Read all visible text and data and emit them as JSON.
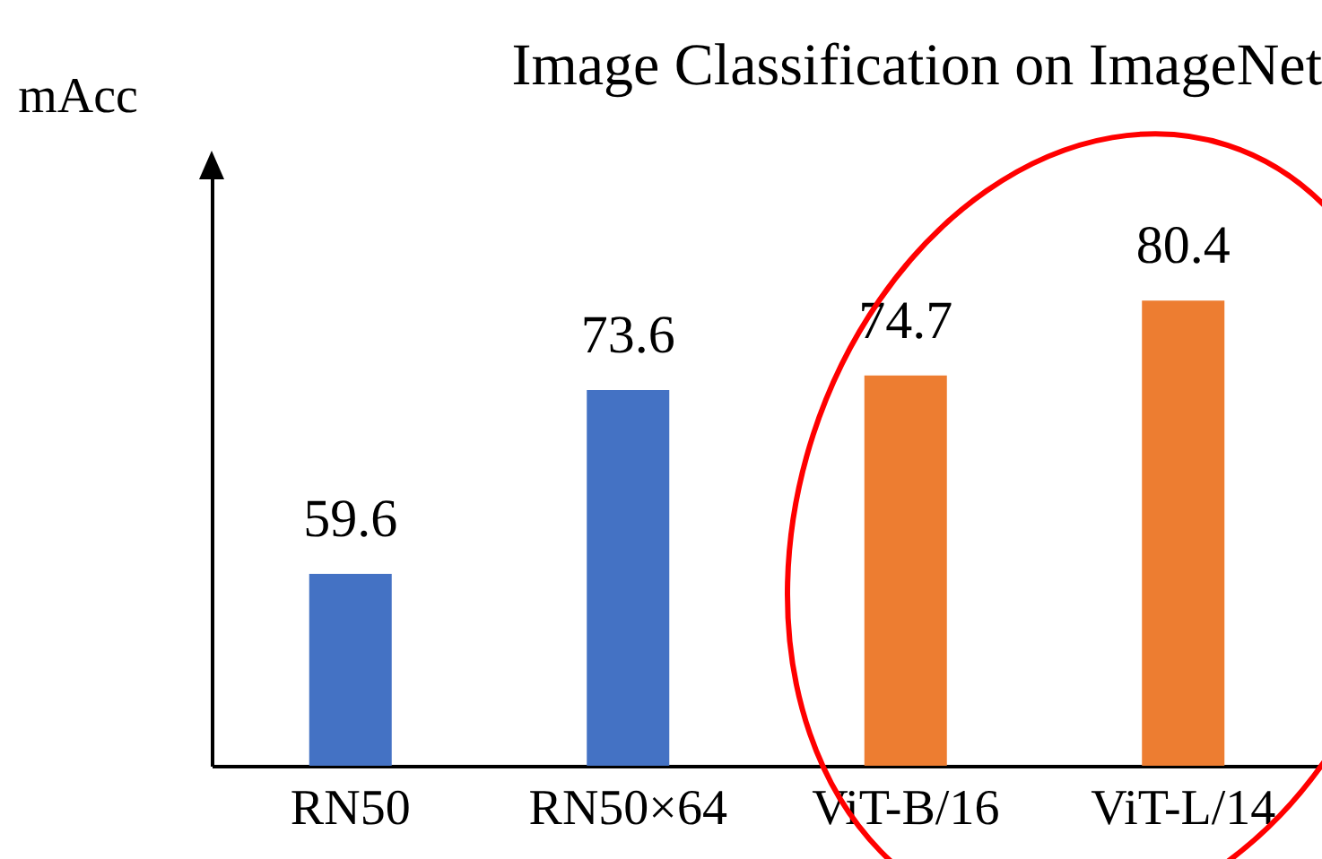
{
  "chart_data": {
    "type": "bar",
    "title": "Image Classification on ImageNet",
    "ylabel": "mAcc",
    "categories": [
      "RN50",
      "RN50×64",
      "ViT-B/16",
      "ViT-L/14"
    ],
    "values": [
      59.6,
      73.6,
      74.7,
      80.4
    ],
    "colors": [
      "#4472c4",
      "#4472c4",
      "#ed7d31",
      "#ed7d31"
    ],
    "ylim": [
      45,
      91
    ],
    "data_labels": true,
    "grid": false,
    "legend": false
  }
}
